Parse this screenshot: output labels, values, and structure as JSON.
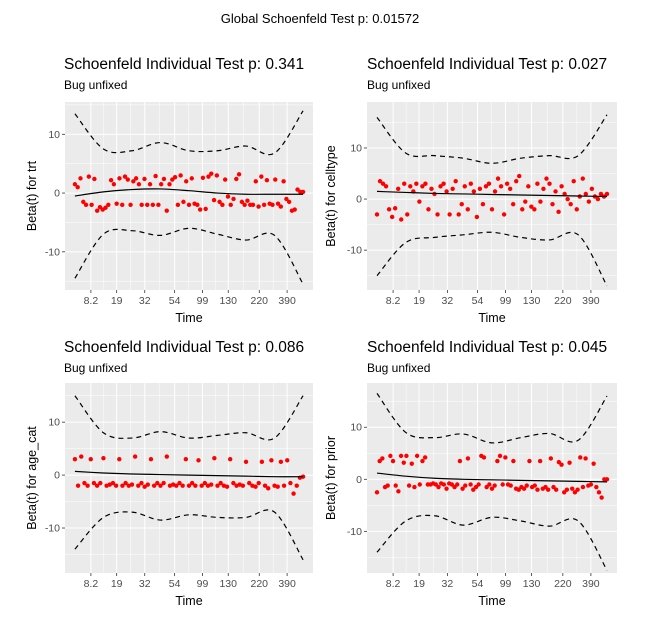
{
  "chart_data": {
    "type": "scatter",
    "title": "Global Schoenfeld Test p: 0.01572",
    "colors": {
      "points": "#ff0000",
      "fit": "#000000",
      "band": "#000000",
      "panel_bg": "#ebebeb",
      "grid": "#ffffff"
    },
    "panels": [
      {
        "title": "Schoenfeld Individual Test p: 0.341",
        "subtitle": "Bug unfixed",
        "xlabel": "Time",
        "ylabel": "Beta(t) for trt",
        "ylim": [
          -16.5,
          15.5
        ],
        "yticks": [
          "-10",
          "0",
          "10"
        ],
        "ytick_values": [
          -10,
          0,
          10
        ],
        "xticks": [
          "8.2",
          "19",
          "32",
          "54",
          "99",
          "130",
          "220",
          "390"
        ],
        "xtick_positions": [
          7,
          18.3,
          30.6,
          43.7,
          55.9,
          67.2,
          80.8,
          93
        ],
        "fit": [
          -0.5,
          0.2,
          0.6,
          0.7,
          0.4,
          0,
          -0.2,
          -0.2,
          -0.2
        ],
        "upper": [
          13.5,
          7.5,
          7.2,
          8.6,
          7.2,
          7.2,
          8,
          6.8,
          14
        ],
        "lower": [
          -14.5,
          -7,
          -6.4,
          -7.2,
          -6,
          -7,
          -8,
          -7.2,
          -15.5
        ],
        "residuals": [
          1.5,
          1,
          2.5,
          -1.5,
          -2,
          2.8,
          -2,
          2.4,
          -3,
          -2.4,
          -2.8,
          -2.5,
          -2,
          2.2,
          1.5,
          -1.8,
          2.5,
          -2,
          2.8,
          2.3,
          -2,
          2,
          2.5,
          1.5,
          -2,
          2.4,
          -2,
          1.5,
          -2,
          2.9,
          -2,
          1.5,
          2.4,
          -3,
          1.5,
          2.3,
          2.7,
          -2,
          3,
          -1.5,
          2,
          -2,
          2.5,
          -1.8,
          -2,
          -2.8,
          2.6,
          -2.7,
          2.8,
          3.3,
          -1.2,
          3,
          -1.5,
          -2,
          2.3,
          -0.6,
          -2,
          -1,
          2.4,
          3.2,
          -1.5,
          -2,
          -1.3,
          -2,
          -2,
          2,
          -2.3,
          2.8,
          -2,
          2.2,
          -1.8,
          -2,
          2.3,
          -1.8,
          -2.3,
          2,
          -1,
          -1.5,
          -3,
          -2.8,
          0.6,
          0.2,
          0.2
        ]
      },
      {
        "title": "Schoenfeld Individual Test p: 0.027",
        "subtitle": "Bug unfixed",
        "xlabel": "Time",
        "ylabel": "Beta(t) for celltype",
        "ylim": [
          -17.8,
          19
        ],
        "yticks": [
          "-10",
          "0",
          "10"
        ],
        "ytick_values": [
          -10,
          0,
          10
        ],
        "xticks": [
          "8.2",
          "19",
          "32",
          "54",
          "99",
          "130",
          "220",
          "390"
        ],
        "xtick_positions": [
          7,
          18.3,
          30.6,
          43.7,
          55.9,
          67.2,
          80.8,
          93
        ],
        "fit": [
          1.5,
          1.3,
          1.1,
          1.0,
          0.9,
          0.8,
          0.7,
          0.6,
          0.5
        ],
        "upper": [
          16,
          9,
          8.5,
          8,
          7,
          8,
          8.5,
          8.5,
          16.5
        ],
        "lower": [
          -15,
          -8.5,
          -7.5,
          -7,
          -6.5,
          -7.5,
          -8,
          -7,
          -17
        ],
        "residuals": [
          -3,
          3.5,
          3,
          2.5,
          -2,
          -3.5,
          -1.8,
          2,
          -4,
          3,
          -3,
          2.5,
          1.5,
          3,
          -0.5,
          2.5,
          3,
          -2,
          2,
          1,
          -3,
          2.5,
          3,
          1.5,
          -3,
          2,
          3.5,
          -3,
          -1,
          2.5,
          -2,
          3,
          1.5,
          -3.5,
          2,
          -1,
          2.5,
          3,
          -2,
          1.5,
          4,
          2.5,
          -3,
          3,
          2,
          -1,
          3.5,
          4.5,
          -2,
          -0.5,
          2.5,
          -1.5,
          -2,
          3,
          -0.5,
          2,
          4,
          3,
          -1,
          1.5,
          -2.5,
          2.5,
          1,
          0,
          -1,
          3.5,
          -2,
          0.5,
          4,
          1,
          -0.5,
          2,
          0.5,
          0,
          1,
          0.5,
          1
        ]
      },
      {
        "title": "Schoenfeld Individual Test p: 0.086",
        "subtitle": "Bug unfixed",
        "xlabel": "Time",
        "ylabel": "Beta(t) for age_cat",
        "ylim": [
          -18.5,
          17.4
        ],
        "yticks": [
          "-10",
          "0",
          "10"
        ],
        "ytick_values": [
          -10,
          0,
          10
        ],
        "xticks": [
          "8.2",
          "19",
          "32",
          "54",
          "99",
          "130",
          "220",
          "390"
        ],
        "xtick_positions": [
          7,
          18.3,
          30.6,
          43.7,
          55.9,
          67.2,
          80.8,
          93
        ],
        "fit": [
          0.7,
          0.4,
          0.2,
          0.1,
          0,
          -0.1,
          -0.2,
          -0.3,
          -0.3
        ],
        "upper": [
          15,
          8,
          7,
          8.2,
          7,
          7.5,
          8,
          7,
          15
        ],
        "lower": [
          -14,
          -8,
          -7,
          -8.5,
          -7.5,
          -8,
          -8,
          -7,
          -16
        ],
        "residuals": [
          3,
          -2,
          3.5,
          -1.5,
          -2,
          3,
          -1.5,
          -2,
          -1.5,
          3.2,
          -2,
          -1.8,
          -1.5,
          -2,
          3,
          -2,
          -1.5,
          -2,
          -1.8,
          3.5,
          -2,
          -1.5,
          -2.2,
          -1.8,
          3,
          -2,
          -1.5,
          -2,
          -1.5,
          3.5,
          -2,
          -1.8,
          -2,
          -1.5,
          -2,
          3,
          -2,
          -1.5,
          -2,
          2.8,
          -2,
          -1.5,
          -2,
          -1.8,
          3.2,
          -2,
          -1.5,
          -2,
          -2.2,
          3,
          -1.5,
          -2,
          -1.8,
          -2,
          2.5,
          -1.5,
          -2,
          -2.2,
          -1.5,
          2.5,
          -2,
          -2.5,
          2.8,
          -2,
          -2.2,
          2.5,
          -2,
          2.8,
          -1.5,
          -3.5,
          -2,
          -0.5,
          -0.3
        ]
      },
      {
        "title": "Schoenfeld Individual Test p: 0.045",
        "subtitle": "Bug unfixed",
        "xlabel": "Time",
        "ylabel": "Beta(t) for prior",
        "ylim": [
          -18,
          18.5
        ],
        "yticks": [
          "-10",
          "0",
          "10"
        ],
        "ytick_values": [
          -10,
          0,
          10
        ],
        "xticks": [
          "8.2",
          "19",
          "32",
          "54",
          "99",
          "130",
          "220",
          "390"
        ],
        "xtick_positions": [
          7,
          18.3,
          30.6,
          43.7,
          55.9,
          67.2,
          80.8,
          93
        ],
        "fit": [
          1.2,
          0.6,
          0.2,
          0,
          -0.1,
          -0.2,
          -0.3,
          -0.4,
          -0.5
        ],
        "upper": [
          16.5,
          9,
          8,
          8.7,
          7,
          8,
          8.8,
          7.5,
          16
        ],
        "lower": [
          -14,
          -8,
          -7,
          -8.8,
          -7.3,
          -8,
          -9,
          -8,
          -17.5
        ],
        "residuals": [
          -2.5,
          3.5,
          4,
          -1.5,
          -1.2,
          4.5,
          3.5,
          -1.2,
          -2.3,
          4.5,
          3.2,
          4.5,
          -1.2,
          3,
          -1.5,
          4.5,
          -1,
          3.5,
          4.2,
          -1,
          -1,
          -0.8,
          -1,
          -1.5,
          -0.8,
          -1,
          -1.8,
          -0.8,
          -1,
          -1.5,
          -1,
          3.5,
          -1.8,
          -1.2,
          4,
          -1,
          -2,
          -1.5,
          -1,
          4.5,
          4.2,
          -1.5,
          -1,
          -1.8,
          -1.2,
          3.5,
          4.5,
          -1,
          4.2,
          -1,
          -1.2,
          3.5,
          -1.8,
          -2,
          -1.5,
          -1.8,
          -1.2,
          3.5,
          -1.5,
          -1.2,
          -2,
          3.5,
          -1.8,
          -1.5,
          -2,
          4,
          -1.5,
          -2,
          3.3,
          2.8,
          -2.5,
          -2,
          3.2,
          -1.8,
          -2.5,
          -2,
          4.2,
          -1.5,
          4,
          -1.2,
          -1,
          3,
          -1.5,
          -2.5,
          -3.5,
          0,
          0
        ]
      }
    ]
  }
}
